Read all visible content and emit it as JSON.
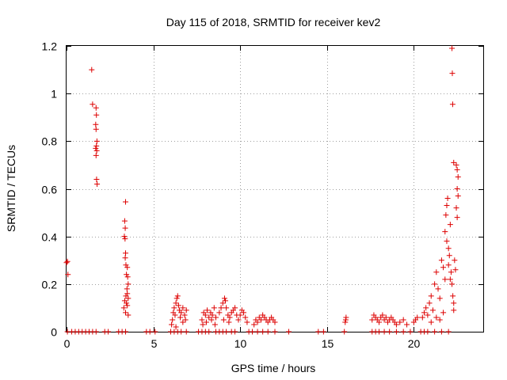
{
  "chart_data": {
    "type": "scatter",
    "title": "Day 115 of 2018, SRMTID for receiver kev2",
    "xlabel": "GPS time / hours",
    "ylabel": "SRMTID / TECUs",
    "xlim": [
      0,
      24
    ],
    "ylim": [
      0,
      1.2
    ],
    "xticks": [
      0,
      5,
      10,
      15,
      20
    ],
    "yticks": [
      0,
      0.2,
      0.4,
      0.6,
      0.8,
      1,
      1.2
    ],
    "xtick_labels": [
      "0",
      "5",
      "10",
      "15",
      "20"
    ],
    "ytick_labels": [
      "0",
      "0.2",
      "0.4",
      "0.6",
      "0.8",
      "1",
      "1.2"
    ],
    "grid": true,
    "marker": "+",
    "color": "#dd0000",
    "series": [
      {
        "name": "SRMTID",
        "points": [
          [
            0.0,
            0.29
          ],
          [
            0.05,
            0.295
          ],
          [
            0.08,
            0.24
          ],
          [
            0.05,
            0.0
          ],
          [
            0.3,
            0.0
          ],
          [
            0.5,
            0.0
          ],
          [
            0.7,
            0.0
          ],
          [
            0.9,
            0.0
          ],
          [
            1.1,
            0.0
          ],
          [
            1.3,
            0.0
          ],
          [
            1.5,
            0.0
          ],
          [
            1.7,
            0.0
          ],
          [
            1.45,
            1.1
          ],
          [
            1.5,
            0.955
          ],
          [
            1.7,
            0.94
          ],
          [
            1.72,
            0.91
          ],
          [
            1.68,
            0.87
          ],
          [
            1.7,
            0.85
          ],
          [
            1.75,
            0.8
          ],
          [
            1.72,
            0.78
          ],
          [
            1.68,
            0.77
          ],
          [
            1.74,
            0.76
          ],
          [
            1.7,
            0.74
          ],
          [
            1.73,
            0.64
          ],
          [
            1.76,
            0.62
          ],
          [
            2.2,
            0.0
          ],
          [
            2.4,
            0.0
          ],
          [
            3.0,
            0.0
          ],
          [
            3.2,
            0.0
          ],
          [
            3.4,
            0.0
          ],
          [
            3.4,
            0.545
          ],
          [
            3.35,
            0.465
          ],
          [
            3.38,
            0.435
          ],
          [
            3.33,
            0.4
          ],
          [
            3.37,
            0.39
          ],
          [
            3.4,
            0.33
          ],
          [
            3.38,
            0.31
          ],
          [
            3.42,
            0.28
          ],
          [
            3.5,
            0.27
          ],
          [
            3.45,
            0.24
          ],
          [
            3.52,
            0.23
          ],
          [
            3.55,
            0.2
          ],
          [
            3.48,
            0.18
          ],
          [
            3.5,
            0.16
          ],
          [
            3.42,
            0.15
          ],
          [
            3.55,
            0.14
          ],
          [
            3.35,
            0.13
          ],
          [
            3.45,
            0.12
          ],
          [
            3.5,
            0.11
          ],
          [
            3.3,
            0.1
          ],
          [
            3.4,
            0.08
          ],
          [
            3.55,
            0.07
          ],
          [
            4.6,
            0.0
          ],
          [
            4.8,
            0.0
          ],
          [
            5.1,
            0.0
          ],
          [
            6.0,
            0.0
          ],
          [
            6.2,
            0.0
          ],
          [
            6.4,
            0.0
          ],
          [
            6.6,
            0.0
          ],
          [
            6.9,
            0.0
          ],
          [
            6.1,
            0.05
          ],
          [
            6.15,
            0.08
          ],
          [
            6.2,
            0.1
          ],
          [
            6.25,
            0.07
          ],
          [
            6.3,
            0.12
          ],
          [
            6.35,
            0.14
          ],
          [
            6.4,
            0.15
          ],
          [
            6.45,
            0.11
          ],
          [
            6.5,
            0.09
          ],
          [
            6.55,
            0.06
          ],
          [
            6.6,
            0.08
          ],
          [
            6.7,
            0.1
          ],
          [
            6.8,
            0.07
          ],
          [
            6.9,
            0.09
          ],
          [
            6.05,
            0.03
          ],
          [
            6.3,
            0.02
          ],
          [
            6.7,
            0.04
          ],
          [
            6.85,
            0.05
          ],
          [
            7.6,
            0.0
          ],
          [
            7.8,
            0.0
          ],
          [
            8.0,
            0.0
          ],
          [
            8.2,
            0.0
          ],
          [
            8.6,
            0.0
          ],
          [
            7.8,
            0.05
          ],
          [
            7.9,
            0.08
          ],
          [
            8.0,
            0.07
          ],
          [
            8.1,
            0.09
          ],
          [
            8.2,
            0.06
          ],
          [
            8.3,
            0.08
          ],
          [
            8.4,
            0.07
          ],
          [
            8.5,
            0.1
          ],
          [
            8.6,
            0.06
          ],
          [
            7.85,
            0.03
          ],
          [
            8.05,
            0.04
          ],
          [
            8.35,
            0.05
          ],
          [
            8.55,
            0.03
          ],
          [
            8.8,
            0.0
          ],
          [
            9.0,
            0.0
          ],
          [
            9.2,
            0.0
          ],
          [
            9.5,
            0.0
          ],
          [
            9.7,
            0.0
          ],
          [
            8.8,
            0.08
          ],
          [
            8.9,
            0.1
          ],
          [
            9.0,
            0.12
          ],
          [
            9.1,
            0.14
          ],
          [
            9.15,
            0.13
          ],
          [
            9.2,
            0.1
          ],
          [
            9.3,
            0.07
          ],
          [
            9.4,
            0.06
          ],
          [
            9.5,
            0.08
          ],
          [
            9.6,
            0.09
          ],
          [
            9.7,
            0.1
          ],
          [
            9.8,
            0.07
          ],
          [
            9.9,
            0.05
          ],
          [
            10.0,
            0.07
          ],
          [
            10.1,
            0.09
          ],
          [
            10.2,
            0.08
          ],
          [
            10.3,
            0.06
          ],
          [
            10.4,
            0.04
          ],
          [
            9.05,
            0.05
          ],
          [
            9.35,
            0.04
          ],
          [
            10.5,
            0.0
          ],
          [
            10.7,
            0.0
          ],
          [
            11.0,
            0.0
          ],
          [
            11.3,
            0.0
          ],
          [
            11.6,
            0.0
          ],
          [
            12.0,
            0.0
          ],
          [
            10.8,
            0.03
          ],
          [
            10.9,
            0.05
          ],
          [
            11.0,
            0.04
          ],
          [
            11.1,
            0.06
          ],
          [
            11.2,
            0.05
          ],
          [
            11.3,
            0.07
          ],
          [
            11.4,
            0.06
          ],
          [
            11.5,
            0.05
          ],
          [
            11.6,
            0.04
          ],
          [
            11.7,
            0.05
          ],
          [
            11.8,
            0.06
          ],
          [
            11.9,
            0.05
          ],
          [
            12.0,
            0.04
          ],
          [
            12.8,
            0.0
          ],
          [
            14.5,
            0.0
          ],
          [
            14.8,
            0.0
          ],
          [
            16.0,
            0.0
          ],
          [
            16.05,
            0.04
          ],
          [
            16.1,
            0.06
          ],
          [
            16.08,
            0.05
          ],
          [
            17.6,
            0.0
          ],
          [
            17.8,
            0.0
          ],
          [
            18.0,
            0.0
          ],
          [
            18.3,
            0.0
          ],
          [
            18.6,
            0.0
          ],
          [
            19.0,
            0.0
          ],
          [
            19.4,
            0.0
          ],
          [
            19.8,
            0.0
          ],
          [
            17.6,
            0.05
          ],
          [
            17.7,
            0.07
          ],
          [
            17.8,
            0.06
          ],
          [
            17.9,
            0.05
          ],
          [
            18.0,
            0.04
          ],
          [
            18.1,
            0.06
          ],
          [
            18.2,
            0.07
          ],
          [
            18.3,
            0.05
          ],
          [
            18.4,
            0.06
          ],
          [
            18.5,
            0.04
          ],
          [
            18.6,
            0.05
          ],
          [
            18.7,
            0.06
          ],
          [
            18.8,
            0.05
          ],
          [
            18.9,
            0.04
          ],
          [
            19.0,
            0.03
          ],
          [
            19.2,
            0.04
          ],
          [
            19.4,
            0.05
          ],
          [
            19.6,
            0.03
          ],
          [
            20.0,
            0.04
          ],
          [
            20.1,
            0.05
          ],
          [
            20.2,
            0.06
          ],
          [
            20.4,
            0.0
          ],
          [
            20.6,
            0.0
          ],
          [
            20.8,
            0.0
          ],
          [
            21.2,
            0.0
          ],
          [
            21.6,
            0.0
          ],
          [
            22.0,
            0.0
          ],
          [
            20.5,
            0.06
          ],
          [
            20.6,
            0.08
          ],
          [
            20.7,
            0.1
          ],
          [
            20.8,
            0.07
          ],
          [
            20.9,
            0.12
          ],
          [
            21.0,
            0.15
          ],
          [
            21.1,
            0.09
          ],
          [
            21.2,
            0.2
          ],
          [
            21.3,
            0.25
          ],
          [
            21.4,
            0.18
          ],
          [
            21.5,
            0.14
          ],
          [
            21.6,
            0.3
          ],
          [
            21.7,
            0.27
          ],
          [
            21.8,
            0.22
          ],
          [
            21.0,
            0.04
          ],
          [
            21.3,
            0.06
          ],
          [
            21.5,
            0.05
          ],
          [
            21.7,
            0.08
          ],
          [
            21.8,
            0.42
          ],
          [
            21.85,
            0.49
          ],
          [
            21.9,
            0.53
          ],
          [
            21.95,
            0.56
          ],
          [
            22.0,
            0.35
          ],
          [
            22.05,
            0.32
          ],
          [
            22.1,
            0.45
          ],
          [
            22.15,
            0.25
          ],
          [
            22.2,
            0.2
          ],
          [
            22.25,
            0.15
          ],
          [
            22.3,
            0.12
          ],
          [
            21.9,
            0.38
          ],
          [
            22.0,
            0.28
          ],
          [
            22.1,
            0.22
          ],
          [
            22.2,
            1.19
          ],
          [
            22.22,
            1.085
          ],
          [
            22.24,
            0.955
          ],
          [
            22.3,
            0.71
          ],
          [
            22.45,
            0.7
          ],
          [
            22.5,
            0.68
          ],
          [
            22.55,
            0.65
          ],
          [
            22.5,
            0.6
          ],
          [
            22.55,
            0.57
          ],
          [
            22.45,
            0.52
          ],
          [
            22.5,
            0.48
          ],
          [
            22.35,
            0.3
          ],
          [
            22.4,
            0.26
          ],
          [
            22.3,
            0.09
          ]
        ]
      }
    ]
  }
}
